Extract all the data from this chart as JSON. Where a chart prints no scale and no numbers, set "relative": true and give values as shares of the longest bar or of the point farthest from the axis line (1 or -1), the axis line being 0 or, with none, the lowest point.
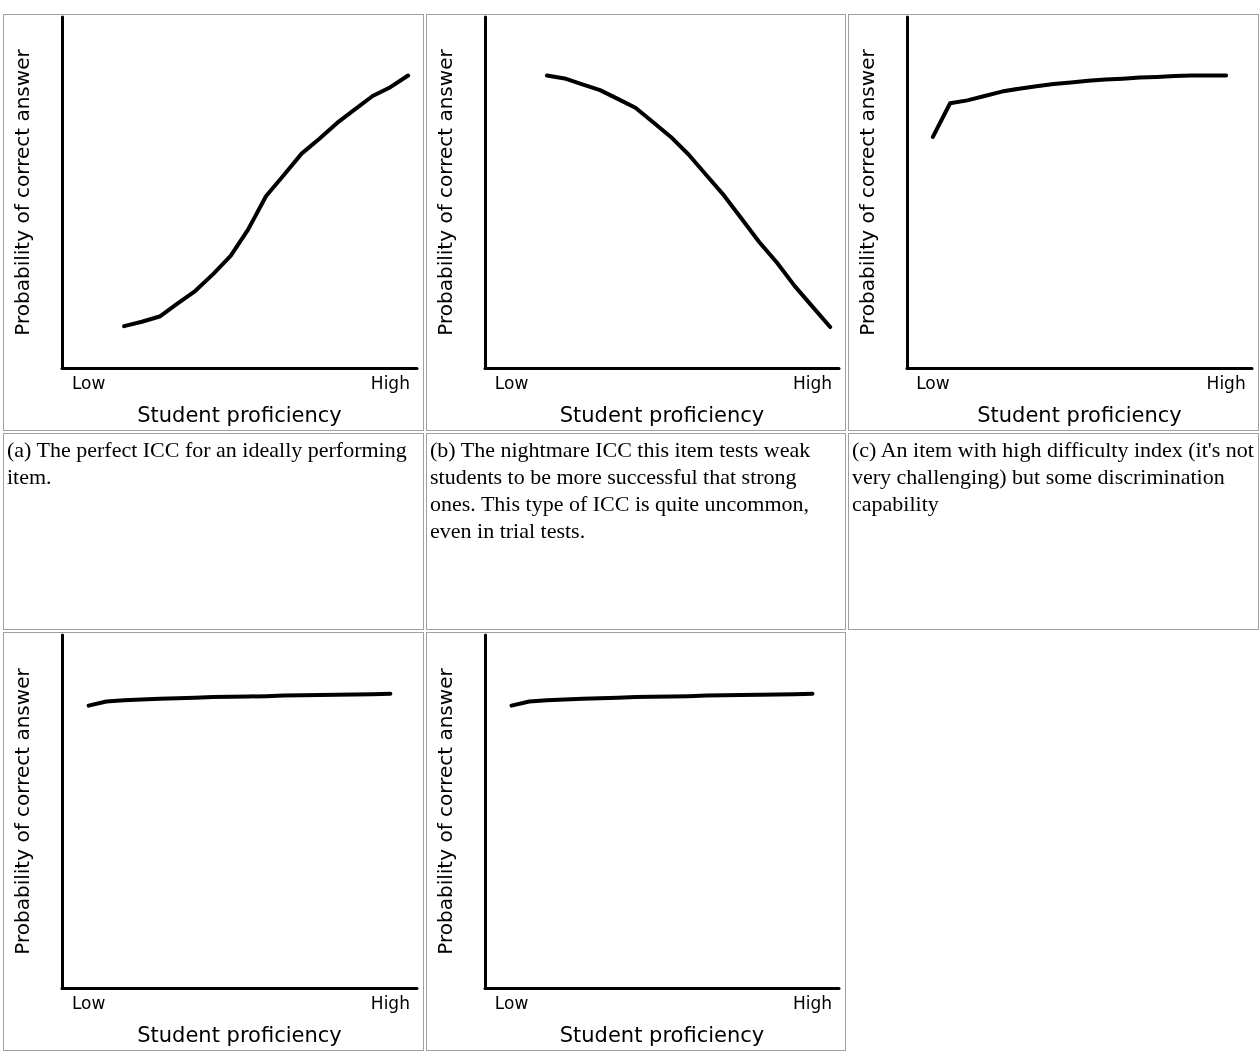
{
  "chart_data": [
    {
      "type": "line",
      "xlabel": "Student proficiency",
      "ylabel": "Probability of correct answer",
      "relative": true,
      "categories": [
        null,
        "Low",
        null,
        null,
        null,
        null,
        null,
        null,
        null,
        null,
        null,
        null,
        null,
        null,
        null,
        null,
        null,
        null,
        "High",
        null
      ],
      "marker": "none",
      "line_style": "solid",
      "grid": false,
      "annotations": [
        "(a) The perfect ICC for an ideally performing item."
      ],
      "series": [
        {
          "color": "#000000",
          "values": [
            null,
            null,
            null,
            0.143,
            0.158,
            0.176,
            0.22,
            0.263,
            0.32,
            0.383,
            0.475,
            0.588,
            0.66,
            0.733,
            0.784,
            0.838,
            0.884,
            0.93,
            0.96,
            1
          ]
        }
      ]
    },
    {
      "type": "line",
      "xlabel": "Student proficiency",
      "ylabel": "Probability of correct answer",
      "relative": true,
      "categories": [
        null,
        "Low",
        null,
        null,
        null,
        null,
        null,
        null,
        null,
        null,
        null,
        null,
        null,
        null,
        null,
        null,
        null,
        null,
        "High",
        null
      ],
      "marker": "none",
      "line_style": "solid",
      "grid": false,
      "annotations": [
        "(b) The nightmare  ICC this item tests weak students to be more successful that strong ones.  This type of ICC is quite uncommon, even in trial tests."
      ],
      "series": [
        {
          "color": "#000000",
          "values": [
            null,
            null,
            null,
            1,
            0.99,
            0.97,
            0.95,
            0.92,
            0.89,
            0.84,
            0.79,
            0.73,
            0.66,
            0.59,
            0.51,
            0.43,
            0.36,
            0.28,
            0.21,
            0.14
          ]
        }
      ]
    },
    {
      "type": "line",
      "xlabel": "Student proficiency",
      "ylabel": "Probability of correct answer",
      "relative": true,
      "categories": [
        null,
        "Low",
        null,
        null,
        null,
        null,
        null,
        null,
        null,
        null,
        null,
        null,
        null,
        null,
        null,
        null,
        null,
        null,
        "High",
        null
      ],
      "marker": "none",
      "line_style": "solid",
      "grid": false,
      "annotations": [
        "(c) An item with high difficulty index (it's not very challenging) but some discrimination capability"
      ],
      "series": [
        {
          "color": "#000000",
          "values": [
            null,
            0.79,
            0.905,
            0.915,
            0.93,
            0.945,
            0.955,
            0.963,
            0.971,
            0.976,
            0.982,
            0.986,
            0.989,
            0.993,
            0.995,
            0.998,
            1,
            1,
            1,
            null
          ]
        }
      ]
    },
    {
      "type": "line",
      "xlabel": "Student proficiency",
      "ylabel": "Probability of correct answer",
      "relative": true,
      "categories": [
        null,
        "Low",
        null,
        null,
        null,
        null,
        null,
        null,
        null,
        null,
        null,
        null,
        null,
        null,
        null,
        null,
        null,
        null,
        "High",
        null
      ],
      "marker": "none",
      "line_style": "solid",
      "grid": false,
      "series": [
        {
          "color": "#000000",
          "values": [
            null,
            0.96,
            0.974,
            0.978,
            0.981,
            0.983,
            0.985,
            0.987,
            0.989,
            0.99,
            0.991,
            0.992,
            0.994,
            0.995,
            0.996,
            0.997,
            0.998,
            0.999,
            1,
            null
          ]
        }
      ]
    },
    {
      "type": "line",
      "xlabel": "Student proficiency",
      "ylabel": "Probability of correct answer",
      "relative": true,
      "categories": [
        null,
        "Low",
        null,
        null,
        null,
        null,
        null,
        null,
        null,
        null,
        null,
        null,
        null,
        null,
        null,
        null,
        null,
        null,
        "High",
        null
      ],
      "marker": "none",
      "line_style": "solid",
      "grid": false,
      "series": [
        {
          "color": "#000000",
          "values": [
            null,
            0.96,
            0.974,
            0.978,
            0.981,
            0.983,
            0.985,
            0.987,
            0.989,
            0.99,
            0.991,
            0.992,
            0.994,
            0.995,
            0.996,
            0.997,
            0.998,
            0.999,
            1,
            null
          ]
        }
      ]
    }
  ]
}
